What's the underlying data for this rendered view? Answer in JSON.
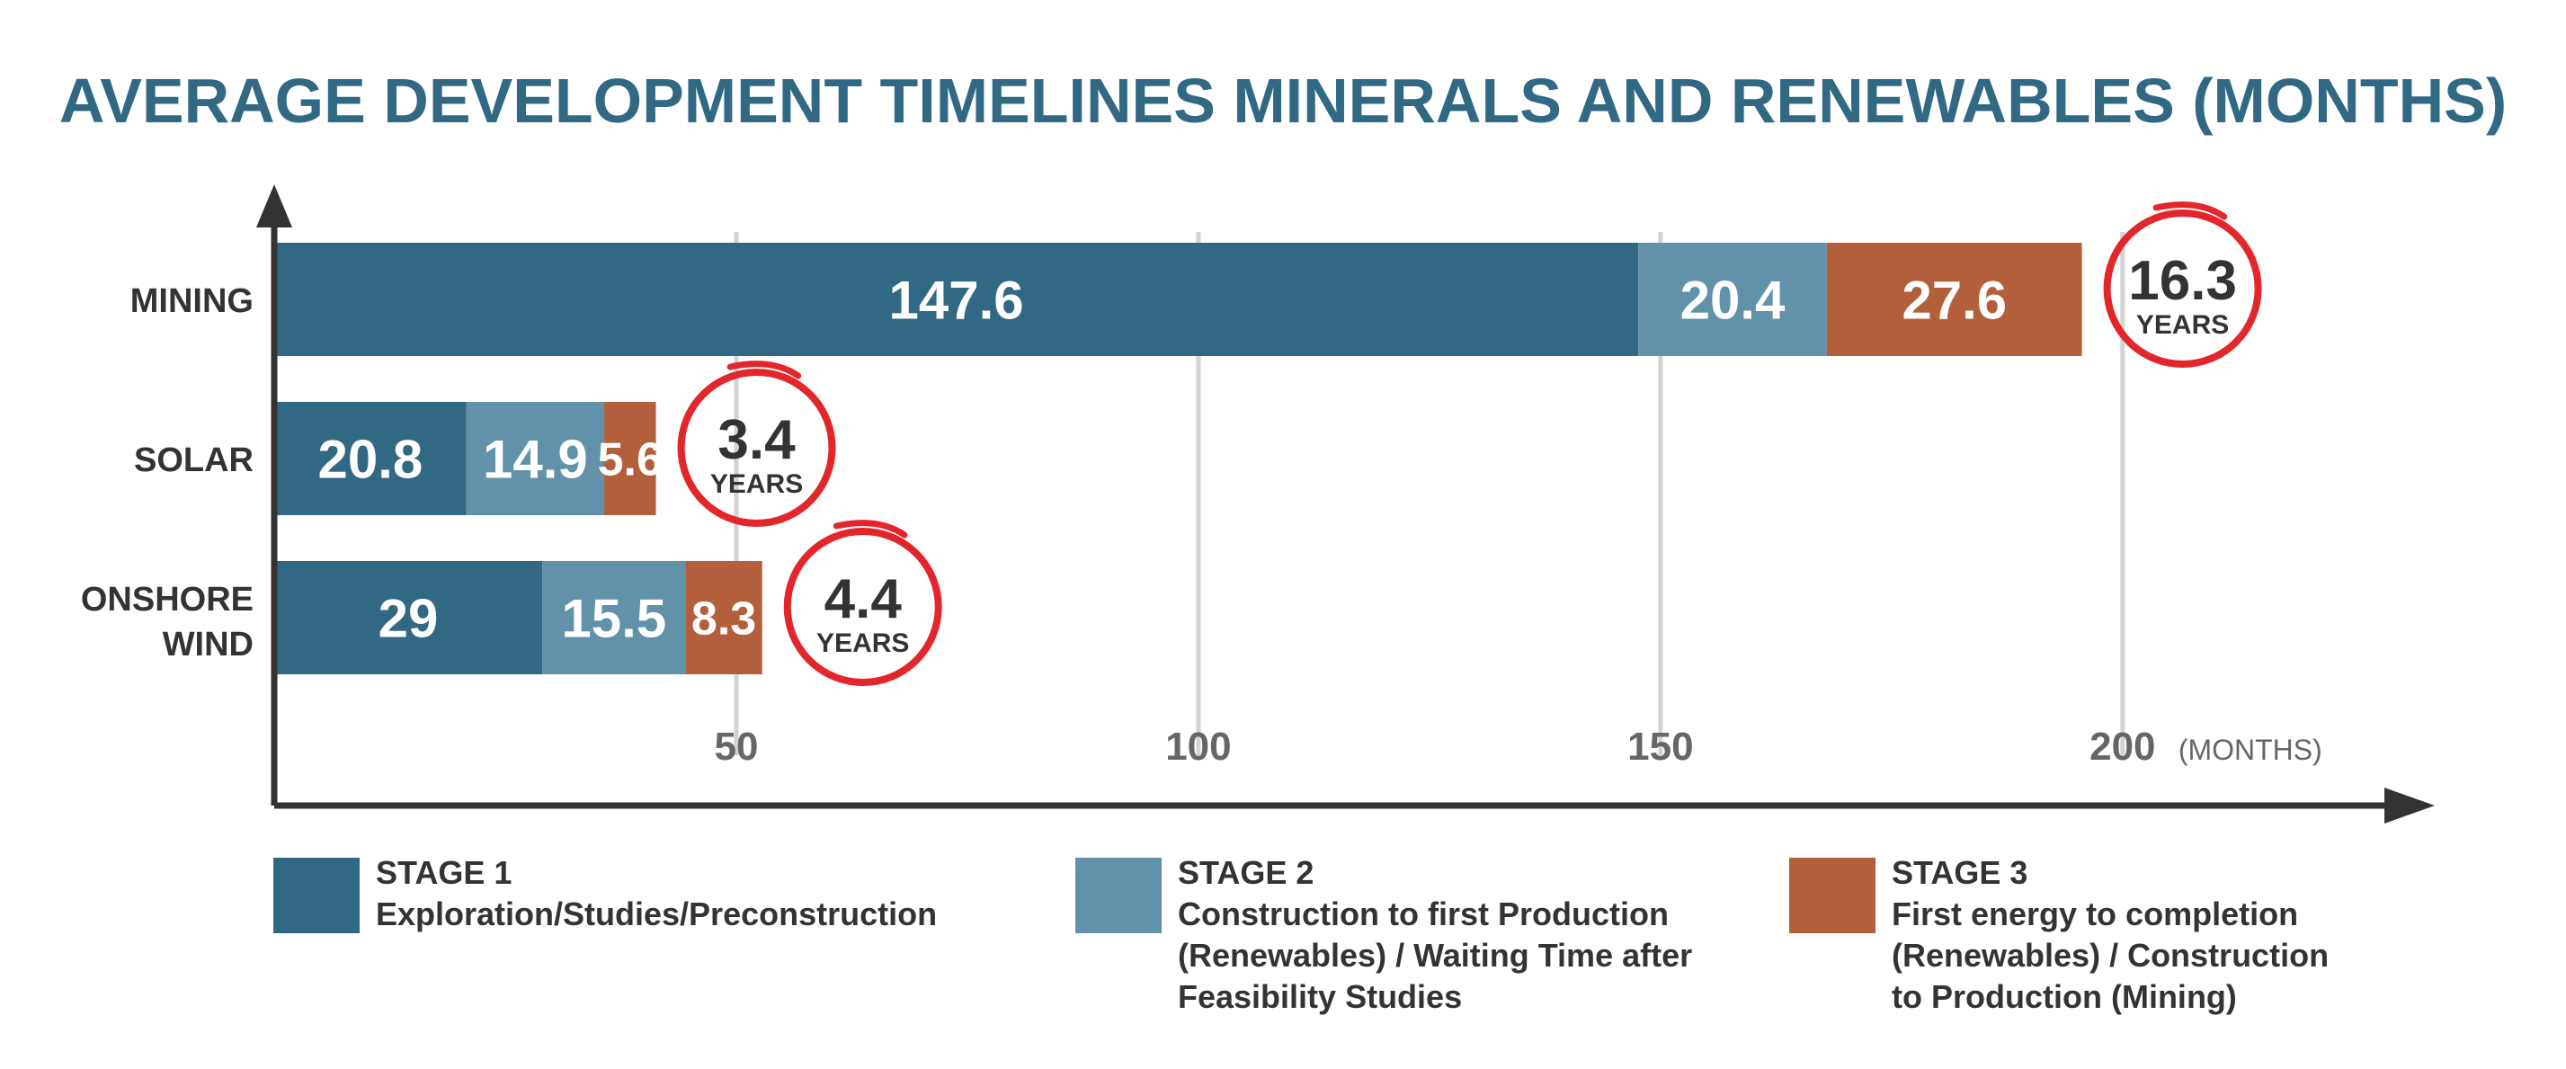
{
  "colors": {
    "stage1": "#316985",
    "stage2": "#6192a9",
    "stage3": "#b35f3c",
    "title": "#316985",
    "axis": "#333333",
    "grid": "#d3d3d3",
    "tick_text": "#666666",
    "circle": "#e3262b"
  },
  "chart_data": {
    "type": "bar",
    "orientation": "horizontal",
    "stacked": true,
    "title": "AVERAGE DEVELOPMENT TIMELINES MINERALS AND RENEWABLES (MONTHS)",
    "xlabel": "(MONTHS)",
    "ylabel": "",
    "xlim": [
      0,
      215
    ],
    "xticks": [
      50,
      100,
      150,
      200
    ],
    "grid": true,
    "legend_position": "bottom",
    "categories": [
      {
        "line1": "MINING",
        "line2": ""
      },
      {
        "line1": "SOLAR",
        "line2": ""
      },
      {
        "line1": "ONSHORE",
        "line2": "WIND"
      }
    ],
    "series": [
      {
        "name": "STAGE 1",
        "values": [
          147.6,
          20.8,
          29
        ],
        "labels": [
          "147.6",
          "20.8",
          "29"
        ]
      },
      {
        "name": "STAGE 2",
        "values": [
          20.4,
          14.9,
          15.5
        ],
        "labels": [
          "20.4",
          "14.9",
          "15.5"
        ]
      },
      {
        "name": "STAGE 3",
        "values": [
          27.6,
          5.6,
          8.3
        ],
        "labels": [
          "27.6",
          "5.6",
          "8.3"
        ]
      }
    ],
    "totals": [
      {
        "value": "16.3",
        "unit": "YEARS"
      },
      {
        "value": "3.4",
        "unit": "YEARS"
      },
      {
        "value": "4.4",
        "unit": "YEARS"
      }
    ]
  },
  "legend": [
    {
      "name": "STAGE 1",
      "desc": [
        "Exploration/Studies/Preconstruction"
      ]
    },
    {
      "name": "STAGE 2",
      "desc": [
        "Construction to first Production",
        "(Renewables) / Waiting Time after",
        "Feasibility Studies"
      ]
    },
    {
      "name": "STAGE 3",
      "desc": [
        "First energy to completion",
        "(Renewables) / Construction",
        "to Production (Mining)"
      ]
    }
  ]
}
